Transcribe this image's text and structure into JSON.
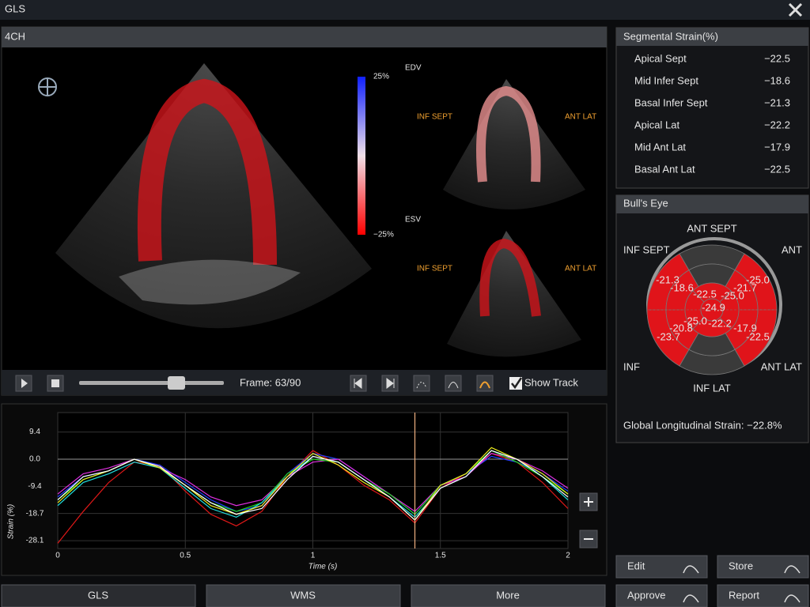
{
  "window": {
    "title": "GLS"
  },
  "view": {
    "label": "4CH",
    "colorbar_top": "25%",
    "colorbar_bottom": "−25%",
    "edv": "EDV",
    "esv": "ESV",
    "edv_left": "INF SEPT",
    "edv_right": "ANT LAT",
    "esv_left": "INF SEPT",
    "esv_right": "ANT LAT"
  },
  "controls": {
    "frame": "Frame: 63/90",
    "show_track": "Show Track"
  },
  "chart_data": {
    "type": "line",
    "y_label": "Strain (%)",
    "x_label": "Time (s)",
    "x": [
      0,
      0.1,
      0.2,
      0.3,
      0.4,
      0.5,
      0.6,
      0.7,
      0.8,
      0.9,
      1,
      1.1,
      1.2,
      1.3,
      1.4,
      1.5,
      1.6,
      1.7,
      1.8,
      1.9,
      2
    ],
    "series": [
      {
        "color": "#e01818",
        "values": [
          -29,
          -18,
          -8,
          -1,
          -2,
          -11,
          -19,
          -23,
          -18,
          -6,
          3,
          -2,
          -9,
          -14,
          -22,
          -10,
          -5,
          2,
          -1,
          -8,
          -17
        ]
      },
      {
        "color": "#2040ff",
        "values": [
          -13,
          -6,
          -4,
          0,
          -2,
          -8,
          -14,
          -18,
          -16,
          -5,
          2,
          0,
          -6,
          -12,
          -19,
          -9,
          -5,
          1,
          -1,
          -5,
          -11
        ]
      },
      {
        "color": "#e030e0",
        "values": [
          -12,
          -5,
          -3,
          0,
          -3,
          -7,
          -13,
          -16,
          -14,
          -6,
          -1,
          0,
          -6,
          -12,
          -18,
          -9,
          -6,
          2,
          0,
          -4,
          -10
        ]
      },
      {
        "color": "#20d020",
        "values": [
          -14,
          -7,
          -4,
          0,
          -3,
          -9,
          -15,
          -18,
          -15,
          -5,
          0,
          -1,
          -7,
          -12,
          -19,
          -9,
          -5,
          3,
          -1,
          -6,
          -12
        ]
      },
      {
        "color": "#20e0e0",
        "values": [
          -16,
          -8,
          -5,
          -1,
          -3,
          -10,
          -17,
          -20,
          -15,
          -6,
          1,
          -1,
          -7,
          -13,
          -20,
          -10,
          -6,
          3,
          0,
          -6,
          -14
        ]
      },
      {
        "color": "#f0f020",
        "values": [
          -15,
          -7,
          -4,
          0,
          -3,
          -9,
          -16,
          -19,
          -16,
          -6,
          2,
          -2,
          -8,
          -13,
          -21,
          -9,
          -5,
          4,
          0,
          -5,
          -12
        ]
      },
      {
        "color": "#ffffff",
        "values": [
          -14,
          -6,
          -4,
          0,
          -2.5,
          -9,
          -15,
          -19,
          -17,
          -7,
          1,
          -1,
          -7,
          -13,
          -21,
          -10,
          -6,
          3,
          0,
          -6,
          -13
        ]
      }
    ],
    "cursor": 1.4,
    "xlim": [
      0,
      2
    ],
    "xticks": [
      0,
      0.5,
      1,
      1.5,
      2
    ],
    "ylim": [
      -30.8,
      16.1
    ],
    "yticks": [
      9.4,
      {
        "value": 0,
        "label": "0.0"
      },
      -9.4,
      -18.7,
      -28.1
    ],
    "grid": true
  },
  "segmental": {
    "title": "Segmental Strain(%)",
    "rows": [
      [
        "Apical Sept",
        "−22.5"
      ],
      [
        "Mid Infer Sept",
        "−18.6"
      ],
      [
        "Basal Infer Sept",
        "−21.3"
      ],
      [
        "Apical Lat",
        "−22.2"
      ],
      [
        "Mid Ant Lat",
        "−17.9"
      ],
      [
        "Basal Ant Lat",
        "−22.5"
      ]
    ]
  },
  "bullseye": {
    "title": "Bull's Eye",
    "labels": [
      "ANT SEPT",
      "ANT",
      "INF SEPT",
      "INF",
      "INF LAT",
      "ANT LAT"
    ],
    "values": [
      "-21.3",
      "-18.6",
      "-22.5",
      "-25.0",
      "-21.7",
      "-25.0",
      "-24.9",
      "-20.8",
      "-25.0",
      "-22.2",
      "-17.9",
      "-22.5",
      "-23.7"
    ],
    "gls": "Global Longitudinal Strain: −22.8%"
  },
  "buttons": [
    "Edit",
    "Store",
    "Approve",
    "Report"
  ],
  "tabs": [
    "GLS",
    "WMS",
    "More"
  ]
}
